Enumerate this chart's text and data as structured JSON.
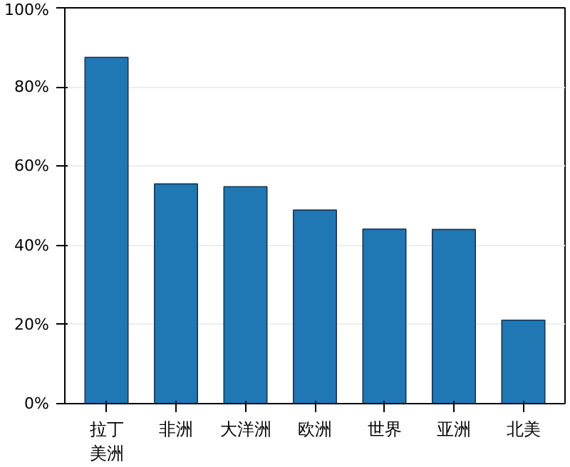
{
  "chart_data": {
    "type": "bar",
    "categories": [
      "拉丁美洲",
      "非洲",
      "大洋洲",
      "欧洲",
      "世界",
      "亚洲",
      "北美"
    ],
    "values": [
      87.5,
      55.5,
      54.8,
      48.9,
      44.1,
      44.0,
      21.1
    ],
    "color": "#1f77b4",
    "ylim": [
      0,
      100
    ],
    "yticks": [
      {
        "value": 0,
        "label": "0%"
      },
      {
        "value": 20,
        "label": "20%"
      },
      {
        "value": 40,
        "label": "40%"
      },
      {
        "value": 60,
        "label": "60%"
      },
      {
        "value": 80,
        "label": "80%"
      },
      {
        "value": 100,
        "label": "100%"
      }
    ],
    "grid": "y"
  }
}
